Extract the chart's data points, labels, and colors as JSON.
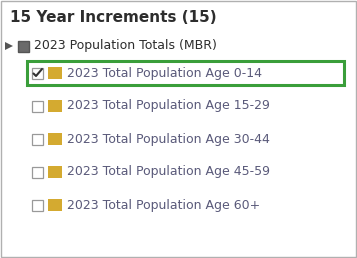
{
  "title": "15 Year Increments (15)",
  "title_fontsize": 11,
  "title_color": "#2d2d2d",
  "title_fontweight": "bold",
  "bg_color": "#ffffff",
  "border_color": "#b0b0b0",
  "parent_label": "2023 Population Totals (MBR)",
  "parent_fontsize": 9,
  "parent_color": "#2d2d2d",
  "items": [
    "2023 Total Population Age 0-14",
    "2023 Total Population Age 15-29",
    "2023 Total Population Age 30-44",
    "2023 Total Population Age 45-59",
    "2023 Total Population Age 60+"
  ],
  "item_fontsize": 9,
  "item_color": "#5a5a7a",
  "checked_index": 0,
  "highlight_color": "#3a9e3a",
  "folder_color": "#d4aa30",
  "checkbox_color": "#999999",
  "checkmark_color": "#333333",
  "parent_square_fill": "#6a6a6a",
  "parent_square_border": "#555555",
  "arrow_color": "#555555"
}
